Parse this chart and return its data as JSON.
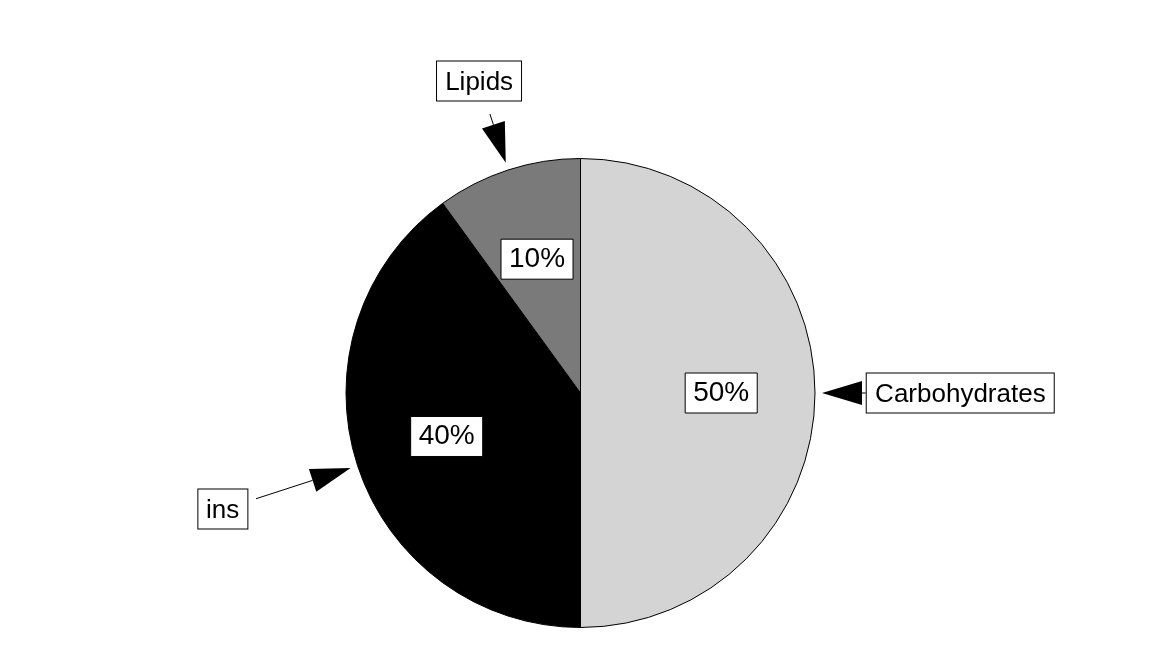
{
  "chart_data": {
    "type": "pie",
    "categories": [
      "Carbohydrates",
      "ins",
      "Lipids"
    ],
    "values": [
      50,
      40,
      10
    ],
    "colors": [
      "#d4d4d4",
      "#000000",
      "#7a7a7a"
    ],
    "value_labels": [
      "50%",
      "40%",
      "10%"
    ],
    "legend": false
  }
}
